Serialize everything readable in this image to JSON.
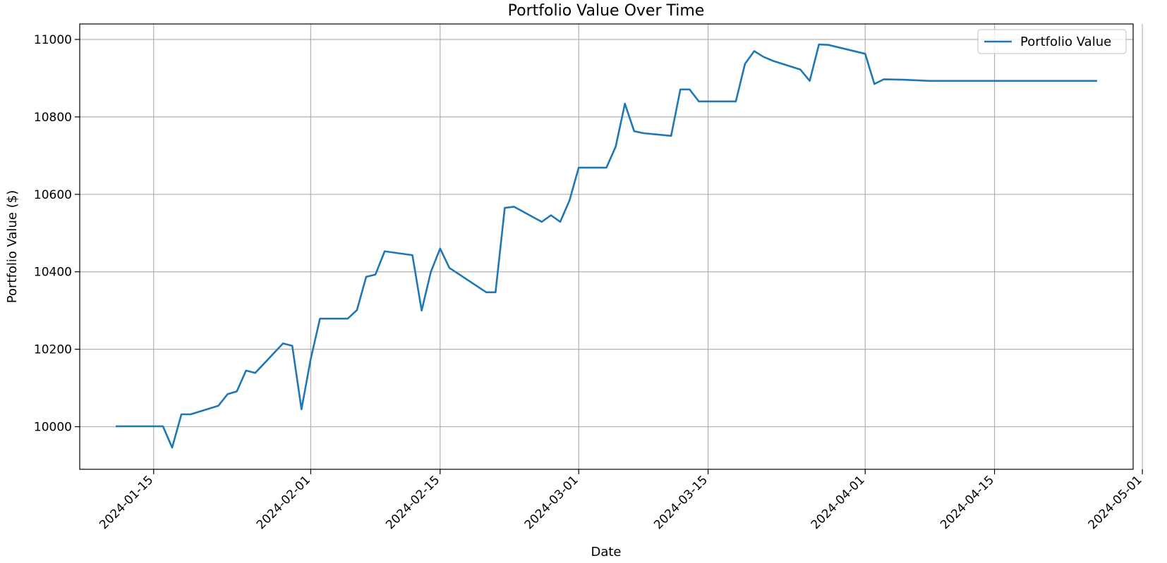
{
  "chart_data": {
    "type": "line",
    "title": "Portfolio Value Over Time",
    "xlabel": "Date",
    "ylabel": "Portfolio Value ($)",
    "xlim": [
      "2024-01-07",
      "2024-04-30"
    ],
    "ylim": [
      9890,
      11040
    ],
    "x_ticks": [
      "2024-01-15",
      "2024-02-01",
      "2024-02-15",
      "2024-03-01",
      "2024-03-15",
      "2024-04-01",
      "2024-04-15",
      "2024-05-01"
    ],
    "y_ticks": [
      10000,
      10200,
      10400,
      10600,
      10800,
      11000
    ],
    "grid": true,
    "legend": "top-right",
    "series": [
      {
        "name": "Portfolio Value",
        "color": "#1f77b4",
        "x": [
          "2024-01-11",
          "2024-01-12",
          "2024-01-15",
          "2024-01-16",
          "2024-01-17",
          "2024-01-18",
          "2024-01-19",
          "2024-01-22",
          "2024-01-23",
          "2024-01-24",
          "2024-01-25",
          "2024-01-26",
          "2024-01-29",
          "2024-01-30",
          "2024-01-31",
          "2024-02-01",
          "2024-02-02",
          "2024-02-05",
          "2024-02-06",
          "2024-02-07",
          "2024-02-08",
          "2024-02-09",
          "2024-02-12",
          "2024-02-13",
          "2024-02-14",
          "2024-02-15",
          "2024-02-16",
          "2024-02-20",
          "2024-02-21",
          "2024-02-22",
          "2024-02-23",
          "2024-02-26",
          "2024-02-27",
          "2024-02-28",
          "2024-02-29",
          "2024-03-01",
          "2024-03-04",
          "2024-03-05",
          "2024-03-06",
          "2024-03-07",
          "2024-03-08",
          "2024-03-11",
          "2024-03-12",
          "2024-03-13",
          "2024-03-14",
          "2024-03-15",
          "2024-03-18",
          "2024-03-19",
          "2024-03-20",
          "2024-03-21",
          "2024-03-22",
          "2024-03-25",
          "2024-03-26",
          "2024-03-27",
          "2024-03-28",
          "2024-04-01",
          "2024-04-02",
          "2024-04-03",
          "2024-04-05",
          "2024-04-08",
          "2024-04-10",
          "2024-04-15",
          "2024-04-20",
          "2024-04-26"
        ],
        "values": [
          10001,
          10001,
          10001,
          10001,
          9946,
          10032,
          10032,
          10054,
          10084,
          10091,
          10145,
          10139,
          10215,
          10209,
          10045,
          10175,
          10279,
          10279,
          10301,
          10387,
          10393,
          10453,
          10443,
          10300,
          10400,
          10460,
          10410,
          10347,
          10347,
          10565,
          10568,
          10529,
          10546,
          10529,
          10584,
          10669,
          10669,
          10723,
          10834,
          10763,
          10758,
          10751,
          10871,
          10871,
          10840,
          10840,
          10840,
          10937,
          10970,
          10955,
          10945,
          10922,
          10893,
          10987,
          10986,
          10963,
          10885,
          10897,
          10896,
          10893,
          10893,
          10893,
          10893,
          10893
        ]
      }
    ]
  }
}
